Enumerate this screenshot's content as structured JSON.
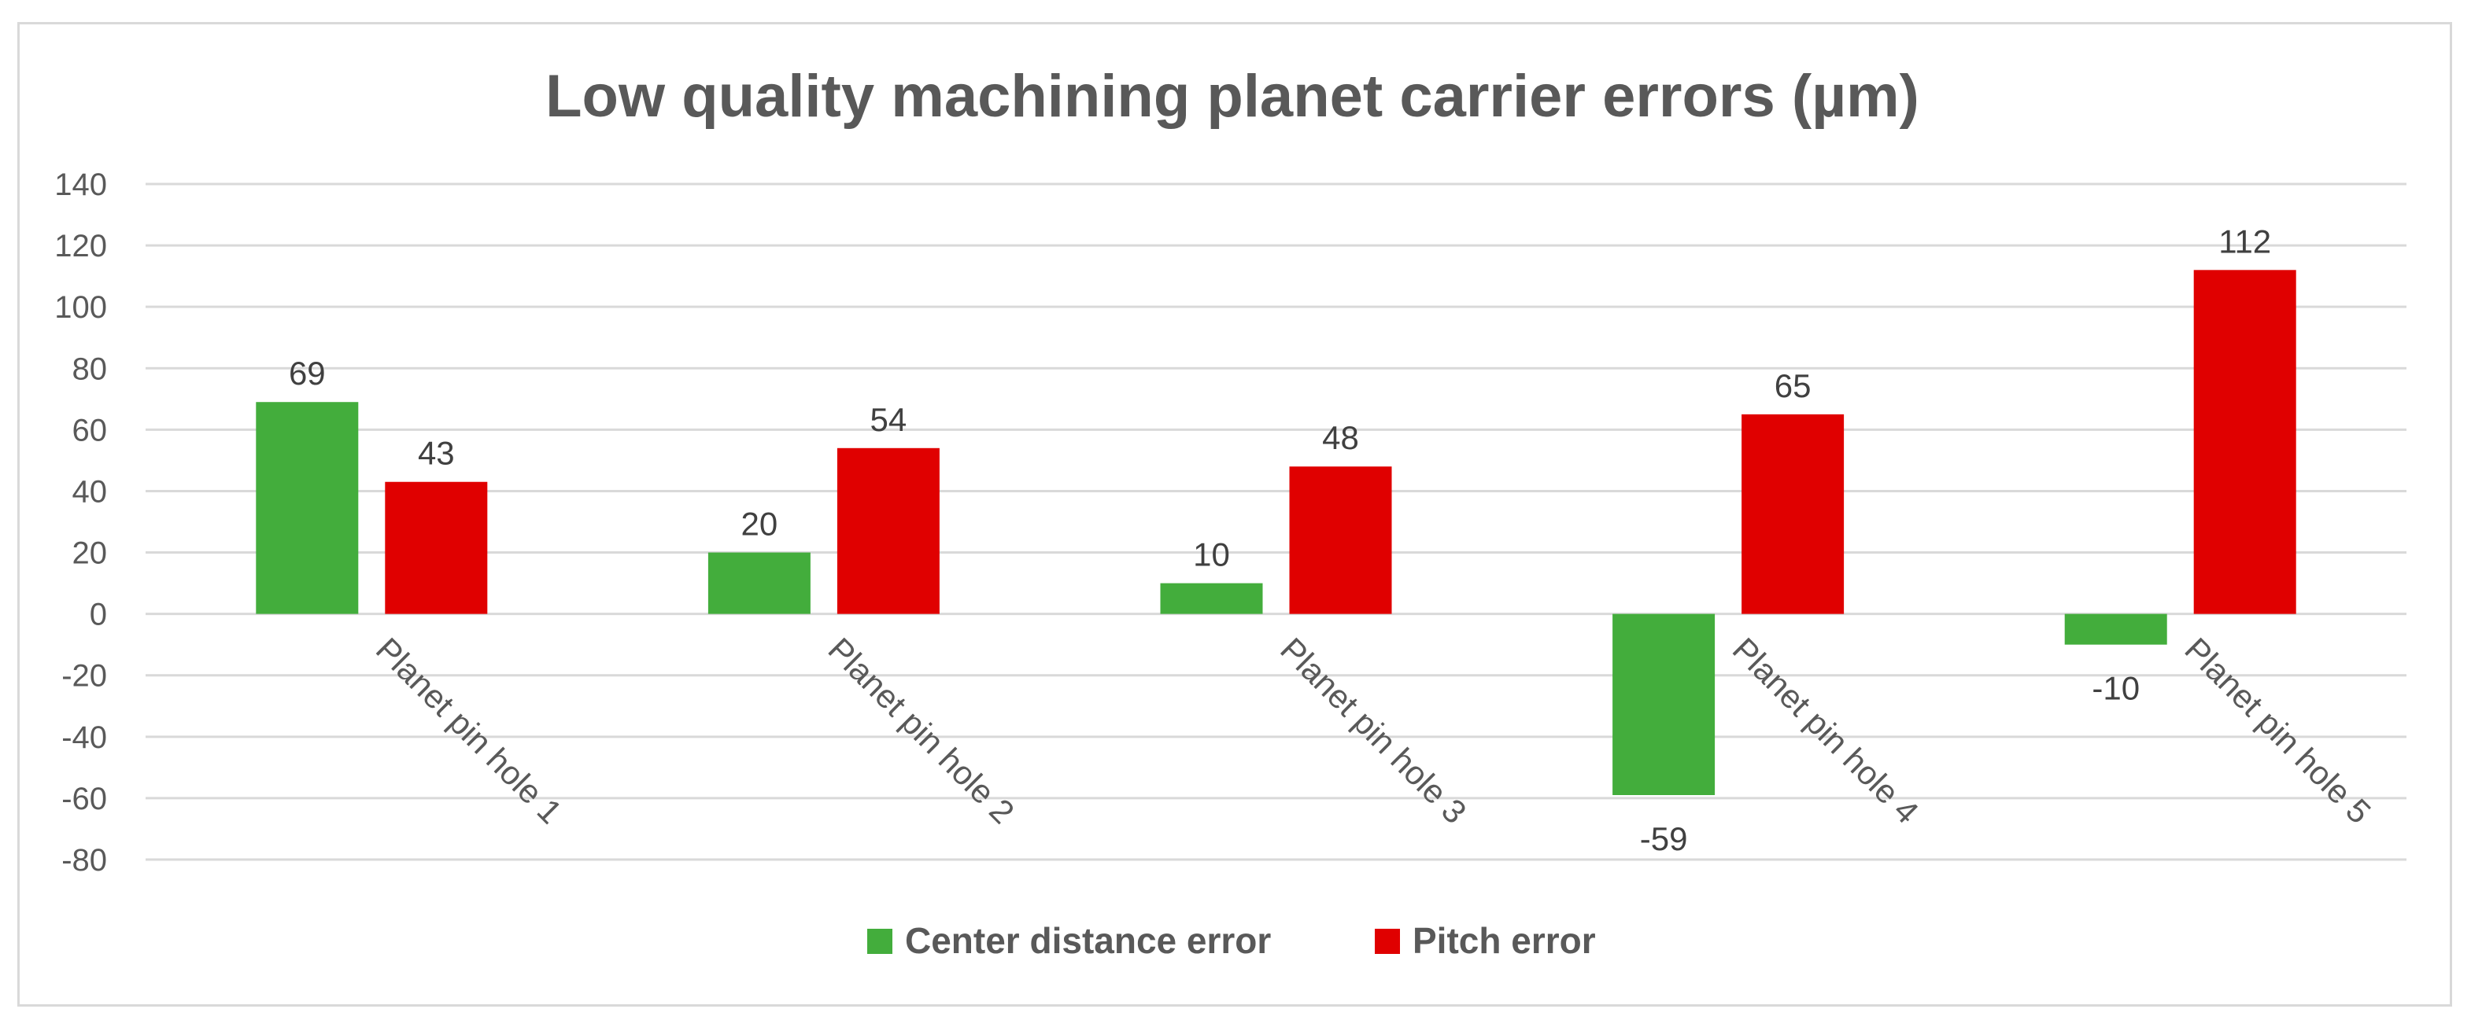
{
  "chart_data": {
    "type": "bar",
    "title": "Low quality machining planet carrier errors (µm)",
    "categories": [
      "Planet pin hole 1",
      "Planet pin hole 2",
      "Planet pin hole 3",
      "Planet pin hole 4",
      "Planet pin hole 5"
    ],
    "series": [
      {
        "name": "Center distance error",
        "values": [
          69,
          20,
          10,
          -59,
          -10
        ],
        "color": "#43ad3c"
      },
      {
        "name": "Pitch error",
        "values": [
          43,
          54,
          48,
          65,
          112
        ],
        "color": "#e00000"
      }
    ],
    "ylim": [
      -80,
      140
    ],
    "yticks": [
      140,
      120,
      100,
      80,
      60,
      40,
      20,
      0,
      -20,
      -40,
      -60,
      -80
    ],
    "grid": true,
    "legend_position": "bottom"
  }
}
